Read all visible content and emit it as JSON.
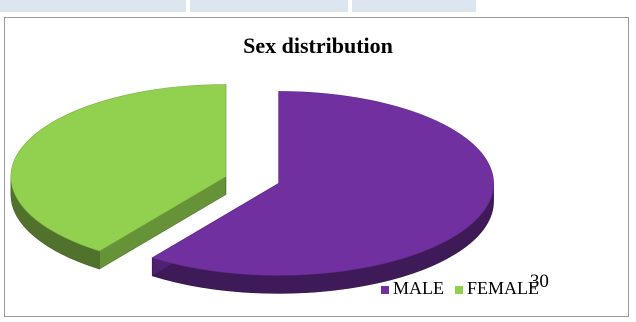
{
  "chart_data": {
    "type": "pie",
    "title": "Sex distribution",
    "categories": [
      "MALE",
      "FEMALE"
    ],
    "values": [
      30,
      20
    ],
    "colors": [
      "#7030a0",
      "#92d050"
    ],
    "exploded": true,
    "three_d": true,
    "legend_position": "bottom-right"
  }
}
